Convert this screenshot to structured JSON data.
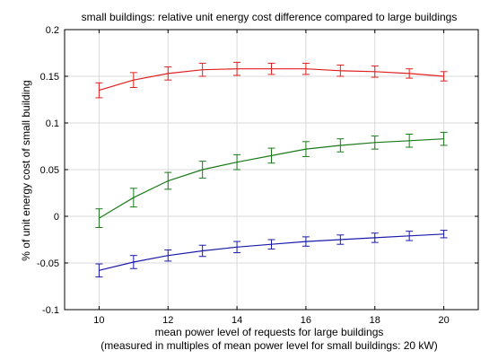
{
  "chart_data": {
    "type": "line",
    "title": "small buildings: relative unit energy cost difference compared to large buildings",
    "xlabel": "mean power level of requests for large buildings",
    "xlabel_line2": "(measured in multiples of mean power level for small buildings: 20 kW)",
    "ylabel": "% of unit energy cost of small building",
    "xlim": [
      9,
      21
    ],
    "ylim": [
      -0.1,
      0.2
    ],
    "grid": true,
    "x": [
      10,
      11,
      12,
      13,
      14,
      15,
      16,
      17,
      18,
      19,
      20
    ],
    "x_ticks": [
      10,
      12,
      14,
      16,
      18,
      20
    ],
    "y_ticks": [
      -0.1,
      -0.05,
      0,
      0.05,
      0.1,
      0.15,
      0.2
    ],
    "x_tick_labels": [
      "10",
      "12",
      "14",
      "16",
      "18",
      "20"
    ],
    "y_tick_labels": [
      "-0.1",
      "-0.05",
      "0",
      "0.05",
      "0.1",
      "0.15",
      "0.2"
    ],
    "series": [
      {
        "color": "#e02020",
        "values": [
          0.135,
          0.146,
          0.153,
          0.157,
          0.158,
          0.158,
          0.158,
          0.156,
          0.155,
          0.153,
          0.15
        ],
        "error": [
          0.008,
          0.008,
          0.007,
          0.007,
          0.007,
          0.006,
          0.006,
          0.006,
          0.006,
          0.005,
          0.005
        ]
      },
      {
        "color": "#1a7a1a",
        "values": [
          -0.002,
          0.02,
          0.038,
          0.05,
          0.058,
          0.065,
          0.072,
          0.076,
          0.079,
          0.081,
          0.083
        ],
        "error": [
          0.01,
          0.01,
          0.009,
          0.009,
          0.008,
          0.008,
          0.008,
          0.007,
          0.007,
          0.007,
          0.007
        ]
      },
      {
        "color": "#1a1aaa",
        "values": [
          -0.058,
          -0.049,
          -0.042,
          -0.037,
          -0.033,
          -0.03,
          -0.027,
          -0.025,
          -0.023,
          -0.021,
          -0.019
        ],
        "error": [
          0.007,
          0.007,
          0.006,
          0.006,
          0.006,
          0.005,
          0.005,
          0.005,
          0.005,
          0.005,
          0.004
        ]
      }
    ]
  }
}
